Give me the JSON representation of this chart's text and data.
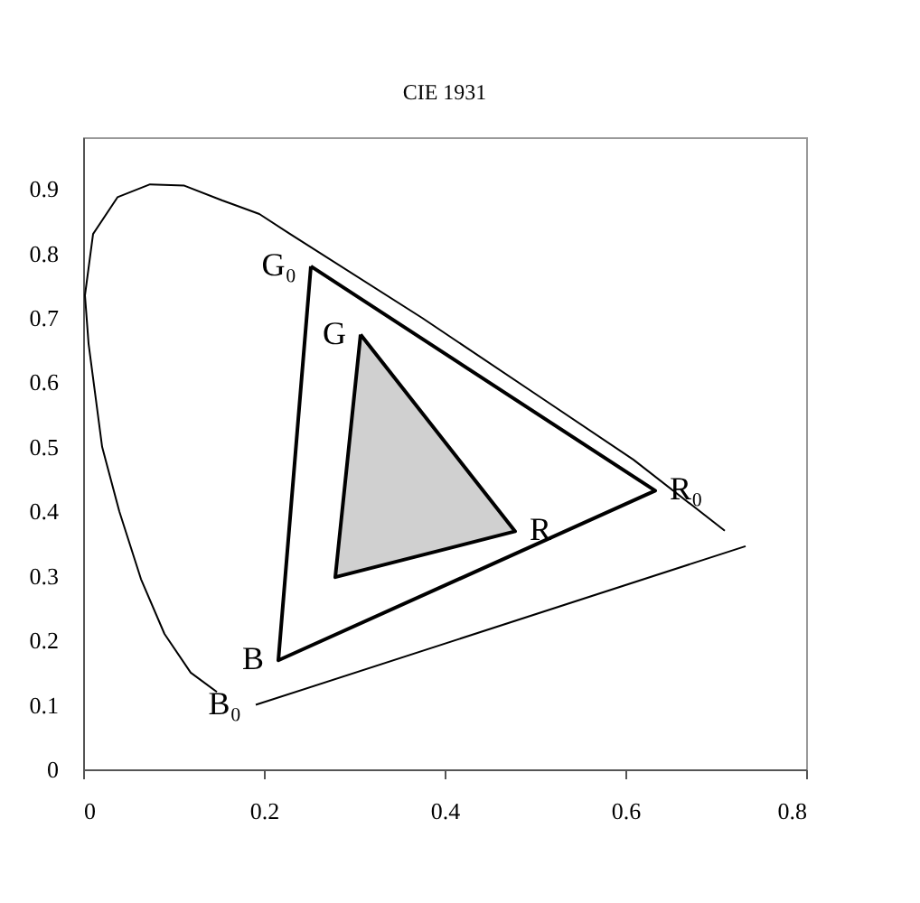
{
  "chart_data": {
    "type": "line",
    "title": "CIE 1931",
    "xlim": [
      0,
      0.8
    ],
    "xticks": [
      0,
      0.2,
      0.4,
      0.6,
      0.8
    ],
    "ylim": [
      0,
      0.98
    ],
    "yticks": [
      0,
      0.1,
      0.2,
      0.3,
      0.4,
      0.5,
      0.6,
      0.7,
      0.8,
      0.9
    ],
    "grid": false,
    "marker": "none",
    "line_style": "solid",
    "series": [
      {
        "color": "#000000",
        "x": [
          0.148,
          0.119,
          0.09,
          0.064,
          0.04,
          0.021,
          0.006,
          0.002,
          0.011,
          0.038,
          0.074,
          0.112,
          0.154,
          0.195,
          0.229,
          0.375,
          0.508,
          0.609,
          0.71
        ],
        "values": [
          0.12,
          0.15,
          0.21,
          0.295,
          0.4,
          0.5,
          0.66,
          0.735,
          0.83,
          0.887,
          0.907,
          0.905,
          0.882,
          0.861,
          0.83,
          0.7,
          0.575,
          0.48,
          0.37
        ]
      },
      {
        "color": "#000000",
        "x": [
          0.191,
          0.733
        ],
        "values": [
          0.1,
          0.346
        ]
      },
      {
        "type": "area",
        "color": "#ffffff",
        "x": [
          0.252,
          0.633,
          0.216,
          0.252
        ],
        "values": [
          0.78,
          0.432,
          0.169,
          0.78
        ]
      },
      {
        "type": "area",
        "color": "#d0d0d0",
        "x": [
          0.307,
          0.478,
          0.279,
          0.307
        ],
        "values": [
          0.674,
          0.369,
          0.298,
          0.674
        ]
      }
    ],
    "annotations": [
      {
        "text": "G₀",
        "x": 0.252,
        "y": 0.78
      },
      {
        "text": "G",
        "x": 0.307,
        "y": 0.674
      },
      {
        "text": "R",
        "x": 0.478,
        "y": 0.369
      },
      {
        "text": "R₀",
        "x": 0.633,
        "y": 0.432
      },
      {
        "text": "B",
        "x": 0.216,
        "y": 0.169
      },
      {
        "text": "B₀",
        "x": 0.191,
        "y": 0.1
      }
    ]
  }
}
